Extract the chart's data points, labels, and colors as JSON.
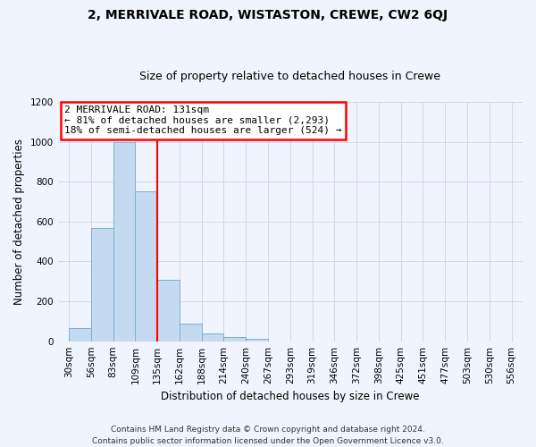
{
  "title": "2, MERRIVALE ROAD, WISTASTON, CREWE, CW2 6QJ",
  "subtitle": "Size of property relative to detached houses in Crewe",
  "bar_values": [
    65,
    570,
    1000,
    750,
    310,
    90,
    40,
    20,
    10,
    0,
    0,
    0,
    0,
    0,
    0,
    0,
    0,
    0,
    0,
    0,
    0
  ],
  "bin_labels": [
    "30sqm",
    "56sqm",
    "83sqm",
    "109sqm",
    "135sqm",
    "162sqm",
    "188sqm",
    "214sqm",
    "240sqm",
    "267sqm",
    "293sqm",
    "319sqm",
    "346sqm",
    "372sqm",
    "398sqm",
    "425sqm",
    "451sqm",
    "477sqm",
    "503sqm",
    "530sqm",
    "556sqm"
  ],
  "bar_color": "#c5daf0",
  "bar_edge_color": "#7aafd4",
  "reference_line_color": "red",
  "reference_line_x": 4.0,
  "ylabel": "Number of detached properties",
  "xlabel": "Distribution of detached houses by size in Crewe",
  "ylim": [
    0,
    1200
  ],
  "yticks": [
    0,
    200,
    400,
    600,
    800,
    1000,
    1200
  ],
  "annotation_title": "2 MERRIVALE ROAD: 131sqm",
  "annotation_line1": "← 81% of detached houses are smaller (2,293)",
  "annotation_line2": "18% of semi-detached houses are larger (524) →",
  "footer1": "Contains HM Land Registry data © Crown copyright and database right 2024.",
  "footer2": "Contains public sector information licensed under the Open Government Licence v3.0.",
  "background_color": "#f0f4ff",
  "grid_color": "#d0d8ee",
  "title_fontsize": 10,
  "subtitle_fontsize": 9,
  "axis_label_fontsize": 8.5,
  "tick_fontsize": 7.5,
  "annot_fontsize": 8,
  "footer_fontsize": 6.5
}
